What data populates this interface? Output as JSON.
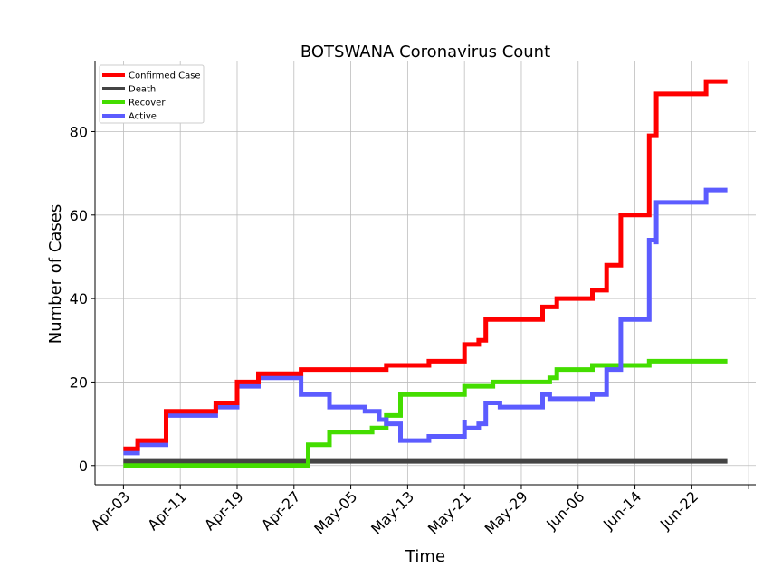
{
  "chart_data": {
    "type": "line",
    "title": "BOTSWANA Coronavirus Count",
    "xlabel": "Time",
    "ylabel": "Number of Cases",
    "x_tick_labels": [
      "Apr-03",
      "Apr-11",
      "Apr-19",
      "Apr-27",
      "May-05",
      "May-13",
      "May-21",
      "May-29",
      "Jun-06",
      "Jun-14",
      "Jun-22"
    ],
    "y_tick_labels": [
      "0",
      "20",
      "40",
      "60",
      "80"
    ],
    "xlim": [
      "2020-03-30",
      "2020-07-01"
    ],
    "ylim": [
      -4.6,
      97
    ],
    "grid": true,
    "legend_position": "top-left",
    "series": [
      {
        "name": "Confirmed Case",
        "color": "#ff0000",
        "points": [
          [
            "2020-04-03",
            4
          ],
          [
            "2020-04-05",
            6
          ],
          [
            "2020-04-09",
            13
          ],
          [
            "2020-04-16",
            15
          ],
          [
            "2020-04-19",
            20
          ],
          [
            "2020-04-22",
            22
          ],
          [
            "2020-04-28",
            23
          ],
          [
            "2020-05-10",
            24
          ],
          [
            "2020-05-16",
            25
          ],
          [
            "2020-05-21",
            29
          ],
          [
            "2020-05-23",
            30
          ],
          [
            "2020-05-24",
            35
          ],
          [
            "2020-06-01",
            38
          ],
          [
            "2020-06-03",
            40
          ],
          [
            "2020-06-08",
            42
          ],
          [
            "2020-06-10",
            48
          ],
          [
            "2020-06-12",
            60
          ],
          [
            "2020-06-15",
            60
          ],
          [
            "2020-06-16",
            79
          ],
          [
            "2020-06-17",
            89
          ],
          [
            "2020-06-23",
            89
          ],
          [
            "2020-06-24",
            92
          ],
          [
            "2020-06-27",
            92
          ]
        ]
      },
      {
        "name": "Death",
        "color": "#444444",
        "points": [
          [
            "2020-04-03",
            1
          ],
          [
            "2020-06-27",
            1
          ]
        ]
      },
      {
        "name": "Recover",
        "color": "#44dd00",
        "points": [
          [
            "2020-04-03",
            0
          ],
          [
            "2020-04-29",
            0
          ],
          [
            "2020-04-29",
            5
          ],
          [
            "2020-05-02",
            8
          ],
          [
            "2020-05-08",
            9
          ],
          [
            "2020-05-10",
            12
          ],
          [
            "2020-05-12",
            17
          ],
          [
            "2020-05-21",
            19
          ],
          [
            "2020-05-25",
            20
          ],
          [
            "2020-06-02",
            21
          ],
          [
            "2020-06-03",
            23
          ],
          [
            "2020-06-08",
            24
          ],
          [
            "2020-06-16",
            25
          ],
          [
            "2020-06-27",
            25
          ]
        ]
      },
      {
        "name": "Active",
        "color": "#5c5cff",
        "points": [
          [
            "2020-04-03",
            3
          ],
          [
            "2020-04-05",
            5
          ],
          [
            "2020-04-09",
            12
          ],
          [
            "2020-04-16",
            14
          ],
          [
            "2020-04-19",
            19
          ],
          [
            "2020-04-22",
            21
          ],
          [
            "2020-04-28",
            17
          ],
          [
            "2020-05-02",
            14
          ],
          [
            "2020-05-07",
            13
          ],
          [
            "2020-05-09",
            11
          ],
          [
            "2020-05-10",
            10
          ],
          [
            "2020-05-12",
            6
          ],
          [
            "2020-05-16",
            7
          ],
          [
            "2020-05-21",
            11
          ],
          [
            "2020-05-21",
            9
          ],
          [
            "2020-05-23",
            10
          ],
          [
            "2020-05-24",
            15
          ],
          [
            "2020-05-26",
            14
          ],
          [
            "2020-06-01",
            17
          ],
          [
            "2020-06-02",
            16
          ],
          [
            "2020-06-08",
            17
          ],
          [
            "2020-06-10",
            23
          ],
          [
            "2020-06-12",
            35
          ],
          [
            "2020-06-15",
            35
          ],
          [
            "2020-06-16",
            54
          ],
          [
            "2020-06-17",
            53
          ],
          [
            "2020-06-17",
            63
          ],
          [
            "2020-06-23",
            63
          ],
          [
            "2020-06-24",
            66
          ],
          [
            "2020-06-27",
            66
          ]
        ]
      }
    ]
  }
}
